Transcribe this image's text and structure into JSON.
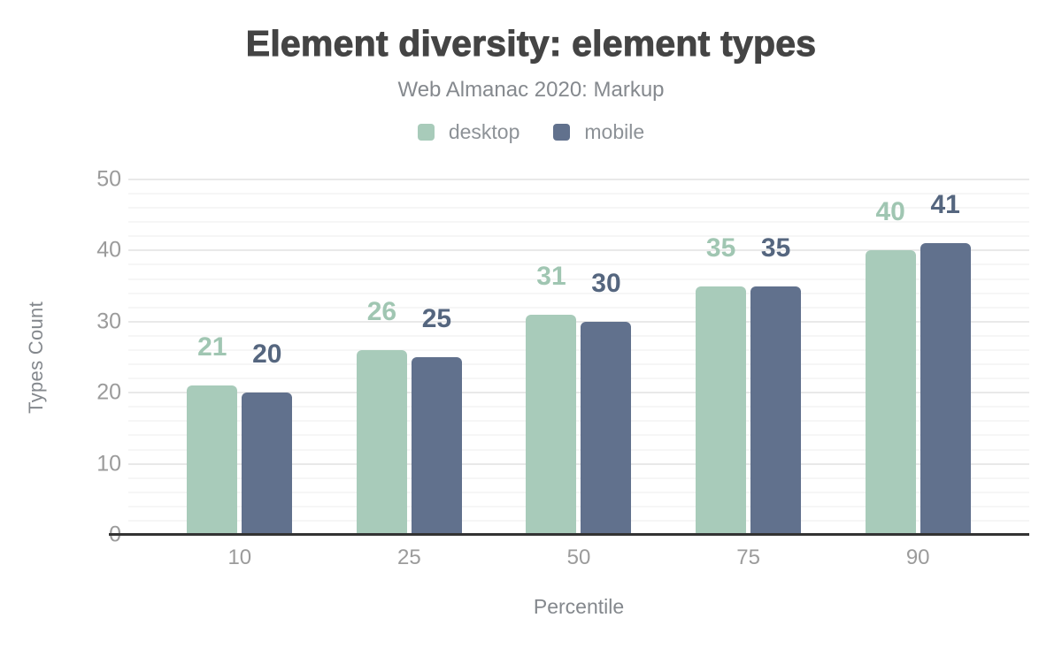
{
  "header": {
    "title": "Element diversity: element types",
    "subtitle": "Web Almanac 2020: Markup"
  },
  "legend": {
    "items": [
      {
        "label": "desktop",
        "color": "#a8cbba"
      },
      {
        "label": "mobile",
        "color": "#61718d"
      }
    ]
  },
  "chart_data": {
    "type": "bar",
    "title": "Element diversity: element types",
    "subtitle": "Web Almanac 2020: Markup",
    "categories": [
      "10",
      "25",
      "50",
      "75",
      "90"
    ],
    "series": [
      {
        "name": "desktop",
        "color": "#a8cbba",
        "label_color": "#a0c6b2",
        "values": [
          21,
          26,
          31,
          35,
          40
        ]
      },
      {
        "name": "mobile",
        "color": "#61718d",
        "label_color": "#55667f",
        "values": [
          20,
          25,
          30,
          35,
          41
        ]
      }
    ],
    "xlabel": "Percentile",
    "ylabel": "Types Count",
    "ylim": [
      0,
      50
    ],
    "y_major_ticks": [
      0,
      10,
      20,
      30,
      40,
      50
    ],
    "y_minor_step": 2,
    "grid": "horizontal",
    "legend_position": "top",
    "bar_value_labels": true
  },
  "colors": {
    "title_text": "#444444",
    "subtitle_text": "#85898e",
    "legend_text": "#8d9297",
    "tick_label": "#9b9b9b",
    "axis_title": "#84888d",
    "axis_line": "#333333",
    "grid_major": "#e9e9e9",
    "grid_minor": "#f6f6f6",
    "bottom_edge": "#bdbdbd"
  }
}
